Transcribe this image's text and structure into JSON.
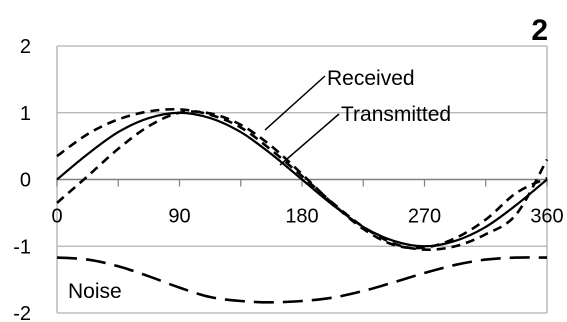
{
  "panel_label": "2",
  "chart_data": {
    "type": "line",
    "x": [
      0,
      22.5,
      45,
      67.5,
      90,
      112.5,
      135,
      157.5,
      180,
      202.5,
      225,
      247.5,
      270,
      292.5,
      315,
      337.5,
      360
    ],
    "xlim": [
      0,
      360
    ],
    "ylim": [
      -2,
      2
    ],
    "x_ticks": [
      "0",
      "90",
      "180",
      "270",
      "360"
    ],
    "y_ticks": [
      "2",
      "1",
      "0",
      "-1",
      "-2"
    ],
    "grid": true,
    "series": [
      {
        "name": "Transmitted",
        "style": "solid",
        "values": [
          0,
          0.38,
          0.71,
          0.92,
          1.0,
          0.92,
          0.71,
          0.38,
          0,
          -0.38,
          -0.71,
          -0.92,
          -1.0,
          -0.92,
          -0.71,
          -0.38,
          0
        ]
      },
      {
        "name": "Received",
        "style": "dashed",
        "values": [
          0.35,
          0.68,
          0.9,
          1.02,
          1.05,
          0.97,
          0.78,
          0.44,
          0.05,
          -0.35,
          -0.71,
          -0.96,
          -1.05,
          -1.0,
          -0.82,
          -0.52,
          0.3
        ]
      },
      {
        "name": "",
        "style": "dashed",
        "values": [
          -0.35,
          0.05,
          0.46,
          0.8,
          1.0,
          0.99,
          0.82,
          0.5,
          0.08,
          -0.36,
          -0.74,
          -0.98,
          -1.02,
          -0.88,
          -0.6,
          -0.2,
          0.02
        ]
      },
      {
        "name": "Noise",
        "style": "longdash",
        "values": [
          -1.17,
          -1.2,
          -1.3,
          -1.45,
          -1.62,
          -1.76,
          -1.82,
          -1.84,
          -1.82,
          -1.77,
          -1.67,
          -1.54,
          -1.4,
          -1.28,
          -1.2,
          -1.17,
          -1.17
        ]
      }
    ],
    "annotations": [
      {
        "text": "Received",
        "target_series": 1
      },
      {
        "text": "Transmitted",
        "target_series": 0
      },
      {
        "text": "Noise",
        "target_series": 3
      }
    ],
    "colors": {
      "line": "#000000",
      "grid": "#b0b0b0",
      "axis": "#808080"
    }
  }
}
